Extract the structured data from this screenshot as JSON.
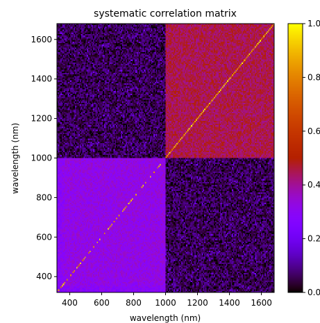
{
  "chart_data": {
    "type": "heatmap",
    "title": "systematic correlation matrix",
    "xlabel": "wavelength (nm)",
    "ylabel": "wavelength (nm)",
    "xlim": [
      320,
      1680
    ],
    "ylim": [
      320,
      1680
    ],
    "split_wavelength": 1000,
    "xticks": [
      "400",
      "600",
      "800",
      "1000",
      "1200",
      "1400",
      "1600"
    ],
    "yticks": [
      "400",
      "600",
      "800",
      "1000",
      "1200",
      "1400",
      "1600"
    ],
    "colormap": "gnuplot",
    "colorbar": {
      "ticks": [
        "0.0",
        "0.2",
        "0.4",
        "0.6",
        "0.8",
        "1.0"
      ],
      "range": [
        0.0,
        1.0
      ]
    },
    "blocks": [
      {
        "name": "lower-left",
        "x_range": [
          320,
          1000
        ],
        "y_range": [
          320,
          1000
        ],
        "mean_value": 0.32,
        "noise": 0.05
      },
      {
        "name": "upper-right",
        "x_range": [
          1000,
          1680
        ],
        "y_range": [
          1000,
          1680
        ],
        "mean_value": 0.45,
        "noise": 0.05
      },
      {
        "name": "upper-left",
        "x_range": [
          320,
          1000
        ],
        "y_range": [
          1000,
          1680
        ],
        "mean_value": 0.05,
        "noise": 0.06
      },
      {
        "name": "lower-right",
        "x_range": [
          1000,
          1680
        ],
        "y_range": [
          320,
          1000
        ],
        "mean_value": 0.05,
        "noise": 0.06
      }
    ],
    "diagonal_value": 1.0,
    "colors": {
      "low": "#000000",
      "mid": "#cc1aa6",
      "high": "#ffff00"
    }
  }
}
